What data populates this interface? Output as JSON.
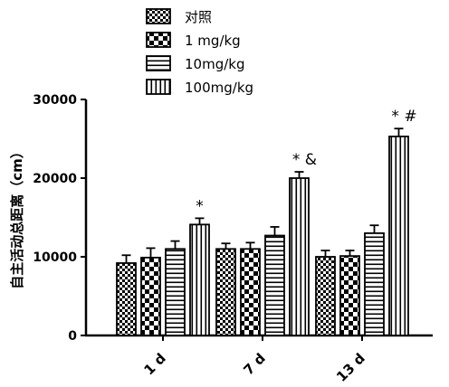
{
  "chart_data": {
    "type": "bar",
    "categories": [
      "1 d",
      "7 d",
      "13 d"
    ],
    "ylabel": "自主活动总距离（cm）",
    "ylim": [
      0,
      30000
    ],
    "yticks": [
      0,
      10000,
      20000,
      30000
    ],
    "legend_position": "top",
    "grid": false,
    "series": [
      {
        "name": "对照",
        "pattern": "checker-small",
        "values": [
          9200,
          11000,
          10000
        ],
        "errors": [
          1000,
          700,
          800
        ]
      },
      {
        "name": "1 mg/kg",
        "pattern": "checker-large",
        "values": [
          9900,
          11000,
          10100
        ],
        "errors": [
          1200,
          800,
          700
        ]
      },
      {
        "name": "10mg/kg",
        "pattern": "horizontal",
        "values": [
          11000,
          12700,
          13000
        ],
        "errors": [
          1000,
          1100,
          1000
        ]
      },
      {
        "name": "100mg/kg",
        "pattern": "vertical",
        "values": [
          14100,
          20000,
          25300
        ],
        "errors": [
          800,
          800,
          1000
        ]
      }
    ],
    "annotations": [
      {
        "category": 0,
        "series": 3,
        "text": "*"
      },
      {
        "category": 1,
        "series": 3,
        "text": "* &"
      },
      {
        "category": 2,
        "series": 3,
        "text": "* #"
      }
    ]
  }
}
